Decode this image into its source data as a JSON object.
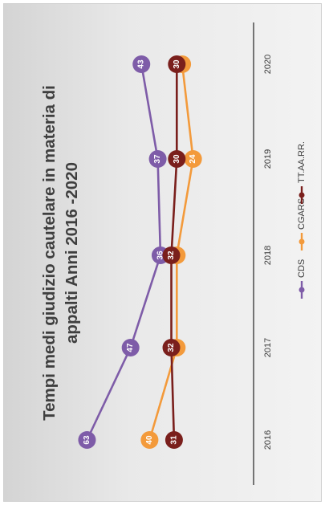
{
  "chart_data": {
    "type": "line",
    "title": [
      "Tempi medi giudizio cautelare in materia di",
      "appalti  Anni 2016 -2020"
    ],
    "categories": [
      "2016",
      "2017",
      "2018",
      "2019",
      "2020"
    ],
    "series": [
      {
        "name": "CDS",
        "color": "#7e5ca8",
        "values": [
          63,
          47,
          36,
          37,
          43
        ]
      },
      {
        "name": "CGARS",
        "color": "#f39a3b",
        "values": [
          40,
          30,
          30,
          24,
          28
        ]
      },
      {
        "name": "TT.AA.RR.",
        "color": "#7a1f1c",
        "values": [
          31,
          32,
          32,
          30,
          30
        ]
      }
    ],
    "data_labels": true,
    "legend_position": "bottom",
    "grid": false,
    "rotation": "chart rotated 90 degrees counter-clockwise"
  }
}
